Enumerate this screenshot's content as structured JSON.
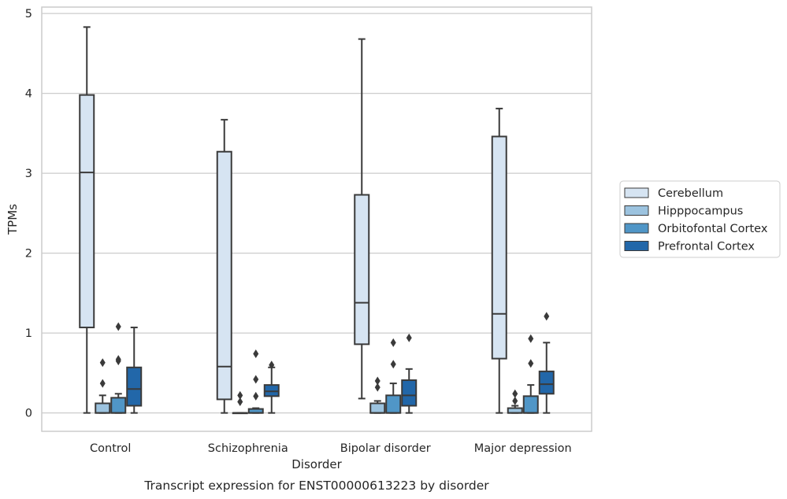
{
  "caption": "Transcript expression for ENST00000613223 by disorder",
  "colors": {
    "Cerebellum": "#d6e4f2",
    "Hipppocampus": "#9cc3df",
    "Orbitofontal Cortex": "#5096c7",
    "Prefrontal Cortex": "#2267a9",
    "edge": "#3a3a3a",
    "grid": "#cccccc"
  },
  "chart_data": {
    "type": "box",
    "xlabel": "Disorder",
    "ylabel": "TPMs",
    "ylim": [
      -0.23,
      5.08
    ],
    "yticks": [
      0,
      1,
      2,
      3,
      4,
      5
    ],
    "grid": true,
    "legend_position": "right",
    "categories": [
      "Control",
      "Schizophrenia",
      "Bipolar disorder",
      "Major depression"
    ],
    "series": [
      {
        "name": "Cerebellum",
        "boxes": [
          {
            "whislo": 0.0,
            "q1": 1.07,
            "med": 3.01,
            "q3": 3.98,
            "whishi": 4.83,
            "fliers": []
          },
          {
            "whislo": 0.0,
            "q1": 0.17,
            "med": 0.58,
            "q3": 3.27,
            "whishi": 3.67,
            "fliers": []
          },
          {
            "whislo": 0.18,
            "q1": 0.86,
            "med": 1.38,
            "q3": 2.73,
            "whishi": 4.68,
            "fliers": []
          },
          {
            "whislo": 0.0,
            "q1": 0.68,
            "med": 1.24,
            "q3": 3.46,
            "whishi": 3.81,
            "fliers": []
          }
        ]
      },
      {
        "name": "Hipppocampus",
        "boxes": [
          {
            "whislo": 0.0,
            "q1": 0.0,
            "med": 0.0,
            "q3": 0.12,
            "whishi": 0.22,
            "fliers": [
              0.37,
              0.63
            ]
          },
          {
            "whislo": 0.0,
            "q1": 0.0,
            "med": 0.0,
            "q3": 0.0,
            "whishi": 0.0,
            "fliers": [
              0.14,
              0.22
            ]
          },
          {
            "whislo": 0.0,
            "q1": 0.0,
            "med": 0.0,
            "q3": 0.12,
            "whishi": 0.15,
            "fliers": [
              0.32,
              0.4
            ]
          },
          {
            "whislo": 0.0,
            "q1": 0.0,
            "med": 0.0,
            "q3": 0.06,
            "whishi": 0.09,
            "fliers": [
              0.15,
              0.24
            ]
          }
        ]
      },
      {
        "name": "Orbitofontal Cortex",
        "boxes": [
          {
            "whislo": 0.0,
            "q1": 0.0,
            "med": 0.0,
            "q3": 0.19,
            "whishi": 0.24,
            "fliers": [
              0.65,
              0.67,
              1.08
            ]
          },
          {
            "whislo": 0.0,
            "q1": 0.0,
            "med": 0.0,
            "q3": 0.05,
            "whishi": 0.06,
            "fliers": [
              0.21,
              0.42,
              0.74
            ]
          },
          {
            "whislo": 0.0,
            "q1": 0.0,
            "med": 0.0,
            "q3": 0.22,
            "whishi": 0.37,
            "fliers": [
              0.61,
              0.88
            ]
          },
          {
            "whislo": 0.0,
            "q1": 0.0,
            "med": 0.0,
            "q3": 0.21,
            "whishi": 0.35,
            "fliers": [
              0.62,
              0.93
            ]
          }
        ]
      },
      {
        "name": "Prefrontal Cortex",
        "boxes": [
          {
            "whislo": 0.0,
            "q1": 0.09,
            "med": 0.3,
            "q3": 0.57,
            "whishi": 1.07,
            "fliers": []
          },
          {
            "whislo": 0.0,
            "q1": 0.21,
            "med": 0.27,
            "q3": 0.35,
            "whishi": 0.57,
            "fliers": [
              0.6
            ]
          },
          {
            "whislo": 0.0,
            "q1": 0.09,
            "med": 0.22,
            "q3": 0.41,
            "whishi": 0.55,
            "fliers": [
              0.94
            ]
          },
          {
            "whislo": 0.0,
            "q1": 0.24,
            "med": 0.36,
            "q3": 0.52,
            "whishi": 0.88,
            "fliers": [
              1.21
            ]
          }
        ]
      }
    ]
  }
}
